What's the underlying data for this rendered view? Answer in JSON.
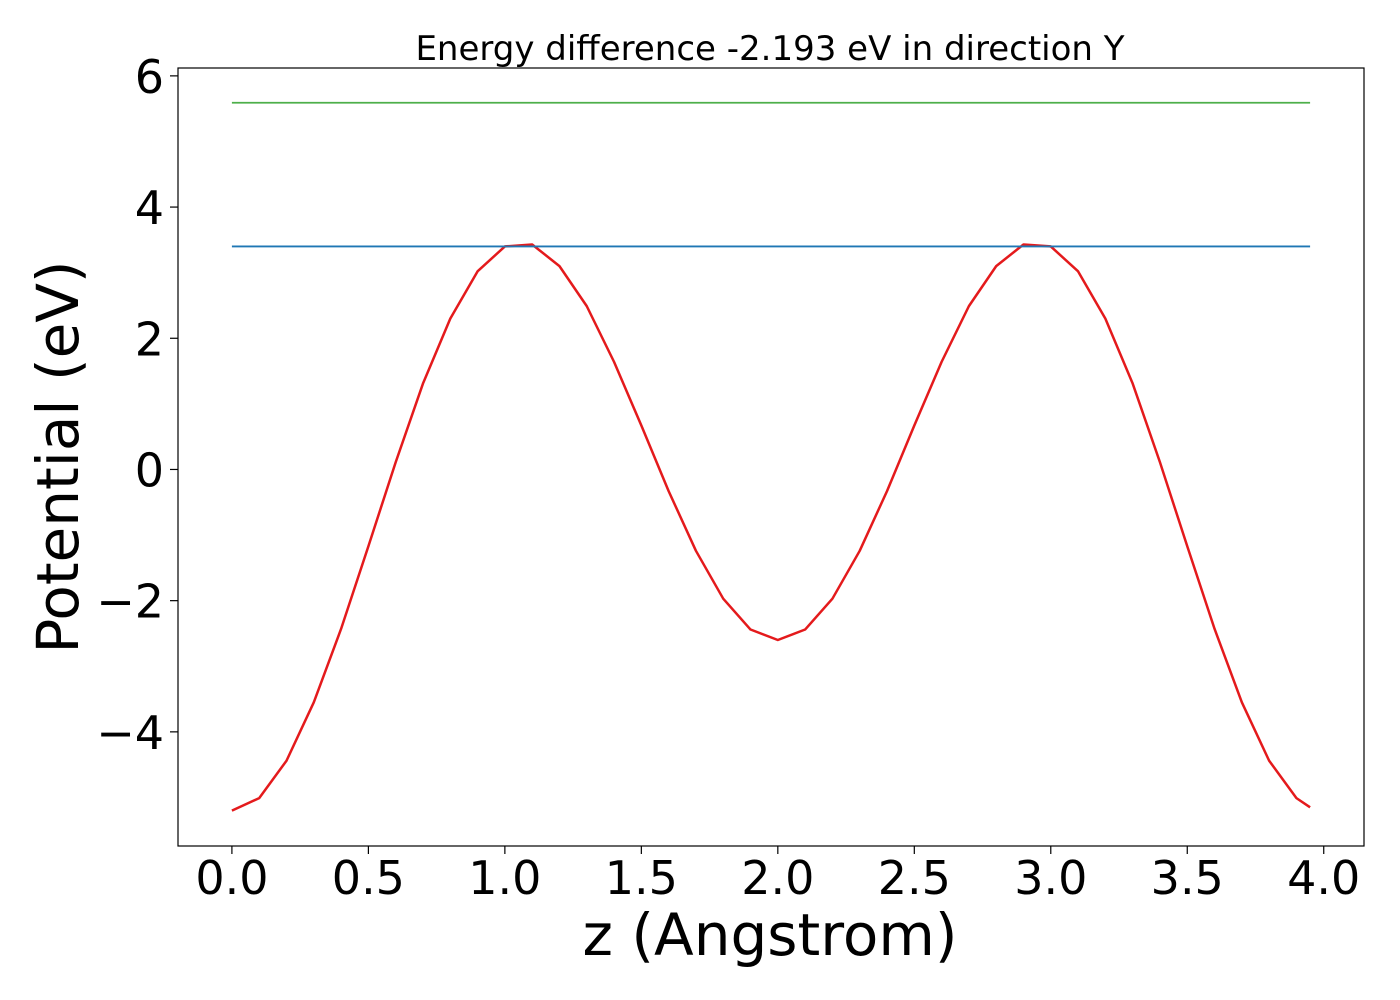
{
  "chart_data": {
    "type": "line",
    "title": "Energy difference -2.193 eV in direction Y",
    "xlabel": "z (Angstrom)",
    "ylabel": "Potential (eV)",
    "xlim": [
      -0.1975,
      4.1475
    ],
    "ylim": [
      -5.74,
      6.12
    ],
    "xticks": [
      {
        "value": 0,
        "label": "0.0"
      },
      {
        "value": 0.5,
        "label": "0.5"
      },
      {
        "value": 1,
        "label": "1.0"
      },
      {
        "value": 1.5,
        "label": "1.5"
      },
      {
        "value": 2,
        "label": "2.0"
      },
      {
        "value": 2.5,
        "label": "2.5"
      },
      {
        "value": 3,
        "label": "3.0"
      },
      {
        "value": 3.5,
        "label": "3.5"
      },
      {
        "value": 4,
        "label": "4.0"
      }
    ],
    "yticks": [
      {
        "value": -4,
        "label": "−4"
      },
      {
        "value": -2,
        "label": "−2"
      },
      0,
      2,
      4,
      6
    ],
    "grid": false,
    "series": [
      {
        "color": "#e41a1c",
        "x": [
          0,
          0.1,
          0.2,
          0.3,
          0.4,
          0.5,
          0.6,
          0.7,
          0.8,
          0.9,
          1.0,
          1.1,
          1.2,
          1.3,
          1.4,
          1.5,
          1.6,
          1.7,
          1.8,
          1.9,
          2.0,
          2.1,
          2.2,
          2.3,
          2.4,
          2.5,
          2.6,
          2.7,
          2.8,
          2.9,
          3.0,
          3.1,
          3.2,
          3.3,
          3.4,
          3.5,
          3.6,
          3.7,
          3.8,
          3.9,
          3.95
        ],
        "values": [
          -5.2,
          -5.01,
          -4.44,
          -3.55,
          -2.43,
          -1.17,
          0.11,
          1.31,
          2.3,
          3.02,
          3.4,
          3.43,
          3.1,
          2.49,
          1.64,
          0.67,
          -0.33,
          -1.24,
          -1.97,
          -2.44,
          -2.6,
          -2.44,
          -1.97,
          -1.24,
          -0.33,
          0.67,
          1.64,
          2.49,
          3.1,
          3.43,
          3.4,
          3.02,
          2.3,
          1.31,
          0.11,
          -1.17,
          -2.43,
          -3.55,
          -4.44,
          -5.01,
          -5.15
        ]
      },
      {
        "color": "#1f77b4",
        "x": [
          0,
          3.95
        ],
        "values": [
          3.4,
          3.4
        ]
      },
      {
        "color": "#4daf4a",
        "x": [
          0,
          3.95
        ],
        "values": [
          5.59,
          5.59
        ]
      }
    ]
  }
}
